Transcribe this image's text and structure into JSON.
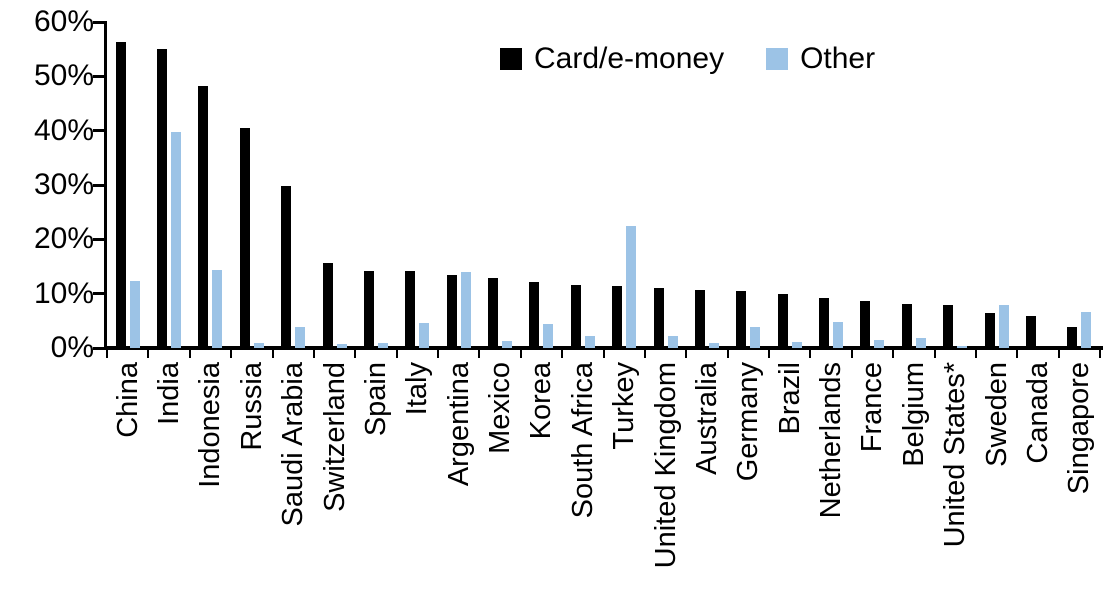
{
  "chart_data": {
    "type": "bar",
    "title": "",
    "xlabel": "",
    "ylabel": "",
    "ylim": [
      0,
      60
    ],
    "grid": false,
    "legend_position": "top-center",
    "yticks": [
      {
        "value": 0,
        "label": "0%"
      },
      {
        "value": 10,
        "label": "10%"
      },
      {
        "value": 20,
        "label": "20%"
      },
      {
        "value": 30,
        "label": "30%"
      },
      {
        "value": 40,
        "label": "40%"
      },
      {
        "value": 50,
        "label": "50%"
      },
      {
        "value": 60,
        "label": "60%"
      }
    ],
    "categories": [
      "China",
      "India",
      "Indonesia",
      "Russia",
      "Saudi Arabia",
      "Switzerland",
      "Spain",
      "Italy",
      "Argentina",
      "Mexico",
      "Korea",
      "South Africa",
      "Turkey",
      "United Kingdom",
      "Australia",
      "Germany",
      "Brazil",
      "Netherlands",
      "France",
      "Belgium",
      "United States*",
      "Sweden",
      "Canada",
      "Singapore"
    ],
    "series": [
      {
        "name": "Card/e-money",
        "color": "#000000",
        "values": [
          56.4,
          55.1,
          48.2,
          40.5,
          29.8,
          15.6,
          14.2,
          14.1,
          13.4,
          12.9,
          12.2,
          11.6,
          11.5,
          11.0,
          10.7,
          10.5,
          10.0,
          9.2,
          8.6,
          8.1,
          7.9,
          6.4,
          5.9,
          3.8
        ]
      },
      {
        "name": "Other",
        "color": "#9CC3E6",
        "values": [
          12.3,
          39.7,
          14.4,
          0.9,
          3.8,
          0.7,
          0.9,
          4.6,
          13.9,
          1.2,
          4.4,
          2.2,
          22.5,
          2.3,
          0.9,
          3.8,
          1.1,
          4.8,
          1.5,
          1.9,
          0.3,
          8.0,
          0.0,
          6.6
        ]
      }
    ]
  }
}
